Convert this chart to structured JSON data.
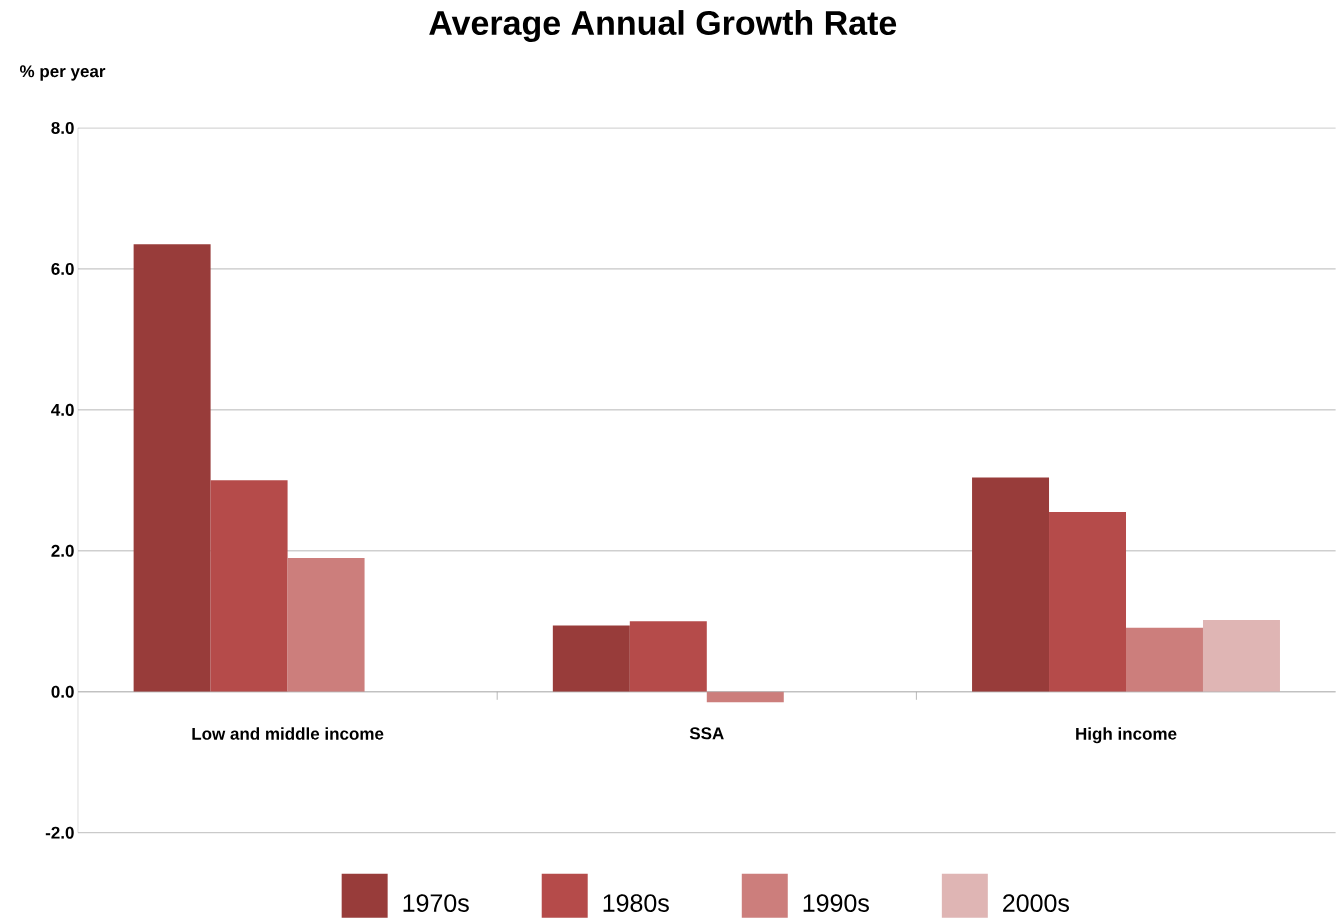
{
  "chart_data": {
    "type": "bar",
    "title": "Average Annual Growth Rate",
    "ylabel": "% per year",
    "categories": [
      "Low and middle income",
      "SSA",
      "High income"
    ],
    "series": [
      {
        "name": "1970s",
        "color": "#983c3a",
        "values": [
          6.35,
          0.94,
          3.04
        ]
      },
      {
        "name": "1980s",
        "color": "#b54b4a",
        "values": [
          3.0,
          1.0,
          2.55
        ]
      },
      {
        "name": "1990s",
        "color": "#cc7e7c",
        "values": [
          1.9,
          -0.15,
          0.91
        ]
      },
      {
        "name": "2000s",
        "color": "#dfb5b4",
        "values": [
          null,
          null,
          1.02
        ]
      }
    ],
    "ylim": [
      -2,
      8
    ],
    "yticks": [
      {
        "value": -2,
        "label": "-2.0"
      },
      {
        "value": 0,
        "label": "0.0"
      },
      {
        "value": 2,
        "label": "2.0"
      },
      {
        "value": 4,
        "label": "4.0"
      },
      {
        "value": 6,
        "label": "6.0"
      },
      {
        "value": 8,
        "label": "8.0"
      }
    ],
    "grid": "y",
    "legend": "bottom"
  }
}
